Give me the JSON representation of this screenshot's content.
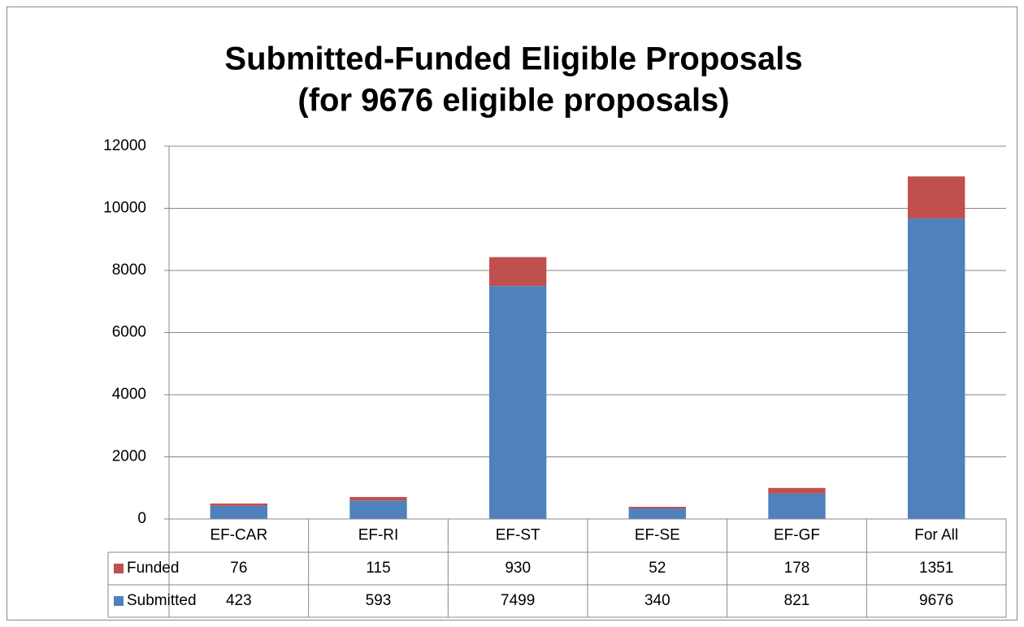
{
  "chart_data": {
    "type": "stacked_bar",
    "title": "Submitted-Funded Eligible Proposals",
    "subtitle": "(for 9676 eligible proposals)",
    "categories": [
      "EF-CAR",
      "EF-RI",
      "EF-ST",
      "EF-SE",
      "EF-GF",
      "For All"
    ],
    "series": [
      {
        "name": "Funded",
        "color": "#c0504d",
        "values": [
          76,
          115,
          930,
          52,
          178,
          1351
        ]
      },
      {
        "name": "Submitted",
        "color": "#4f81bd",
        "values": [
          423,
          593,
          7499,
          340,
          821,
          9676
        ]
      }
    ],
    "ylim": [
      0,
      12000
    ],
    "yticks": [
      0,
      2000,
      4000,
      6000,
      8000,
      10000,
      12000
    ],
    "grid": true
  }
}
